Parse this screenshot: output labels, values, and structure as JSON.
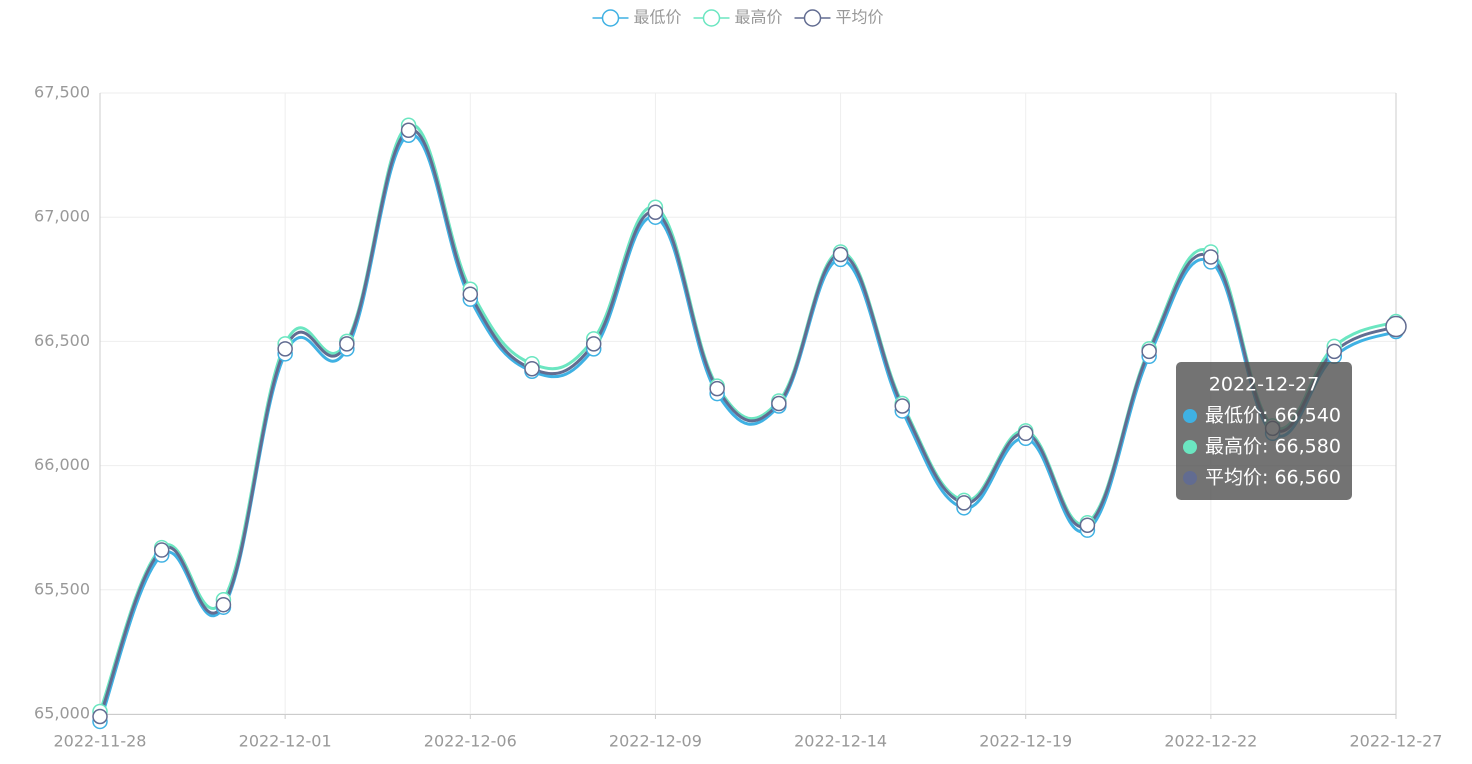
{
  "chart_data": {
    "type": "line",
    "categories": [
      "2022-11-28",
      null,
      null,
      "2022-12-01",
      null,
      null,
      "2022-12-06",
      null,
      null,
      "2022-12-09",
      null,
      null,
      "2022-12-14",
      null,
      null,
      "2022-12-19",
      null,
      null,
      "2022-12-22",
      null,
      null,
      "2022-12-27"
    ],
    "series": [
      {
        "name": "最低价",
        "color": "#3fb1e3",
        "values": [
          64970,
          65640,
          65430,
          66450,
          66470,
          67330,
          66670,
          66380,
          66470,
          67000,
          66290,
          66240,
          66830,
          66220,
          65830,
          66110,
          65740,
          66440,
          66820,
          66130,
          66440,
          66540
        ]
      },
      {
        "name": "最高价",
        "color": "#6be6c1",
        "values": [
          65010,
          65670,
          65460,
          66490,
          66500,
          67370,
          66710,
          66410,
          66510,
          67040,
          66320,
          66260,
          66860,
          66250,
          65860,
          66140,
          65770,
          66470,
          66860,
          66160,
          66480,
          66580
        ]
      },
      {
        "name": "平均价",
        "color": "#626c91",
        "values": [
          64990,
          65660,
          65440,
          66470,
          66490,
          67350,
          66690,
          66390,
          66490,
          67020,
          66310,
          66250,
          66850,
          66240,
          65850,
          66130,
          65760,
          66460,
          66840,
          66150,
          66460,
          66560
        ]
      }
    ],
    "ylim": [
      65000,
      67500
    ],
    "yticks": [
      {
        "value": 65000,
        "label": "65,000"
      },
      {
        "value": 65500,
        "label": "65,500"
      },
      {
        "value": 66000,
        "label": "66,000"
      },
      {
        "value": 66500,
        "label": "66,500"
      },
      {
        "value": 67000,
        "label": "67,000"
      },
      {
        "value": 67500,
        "label": "67,500"
      }
    ],
    "grid": true,
    "smooth": true,
    "legend": "top",
    "tooltip": {
      "index": 21,
      "title": "2022-12-27",
      "labels": [
        "最低价: 66,540",
        "最高价: 66,580",
        "平均价: 66,560"
      ]
    }
  }
}
